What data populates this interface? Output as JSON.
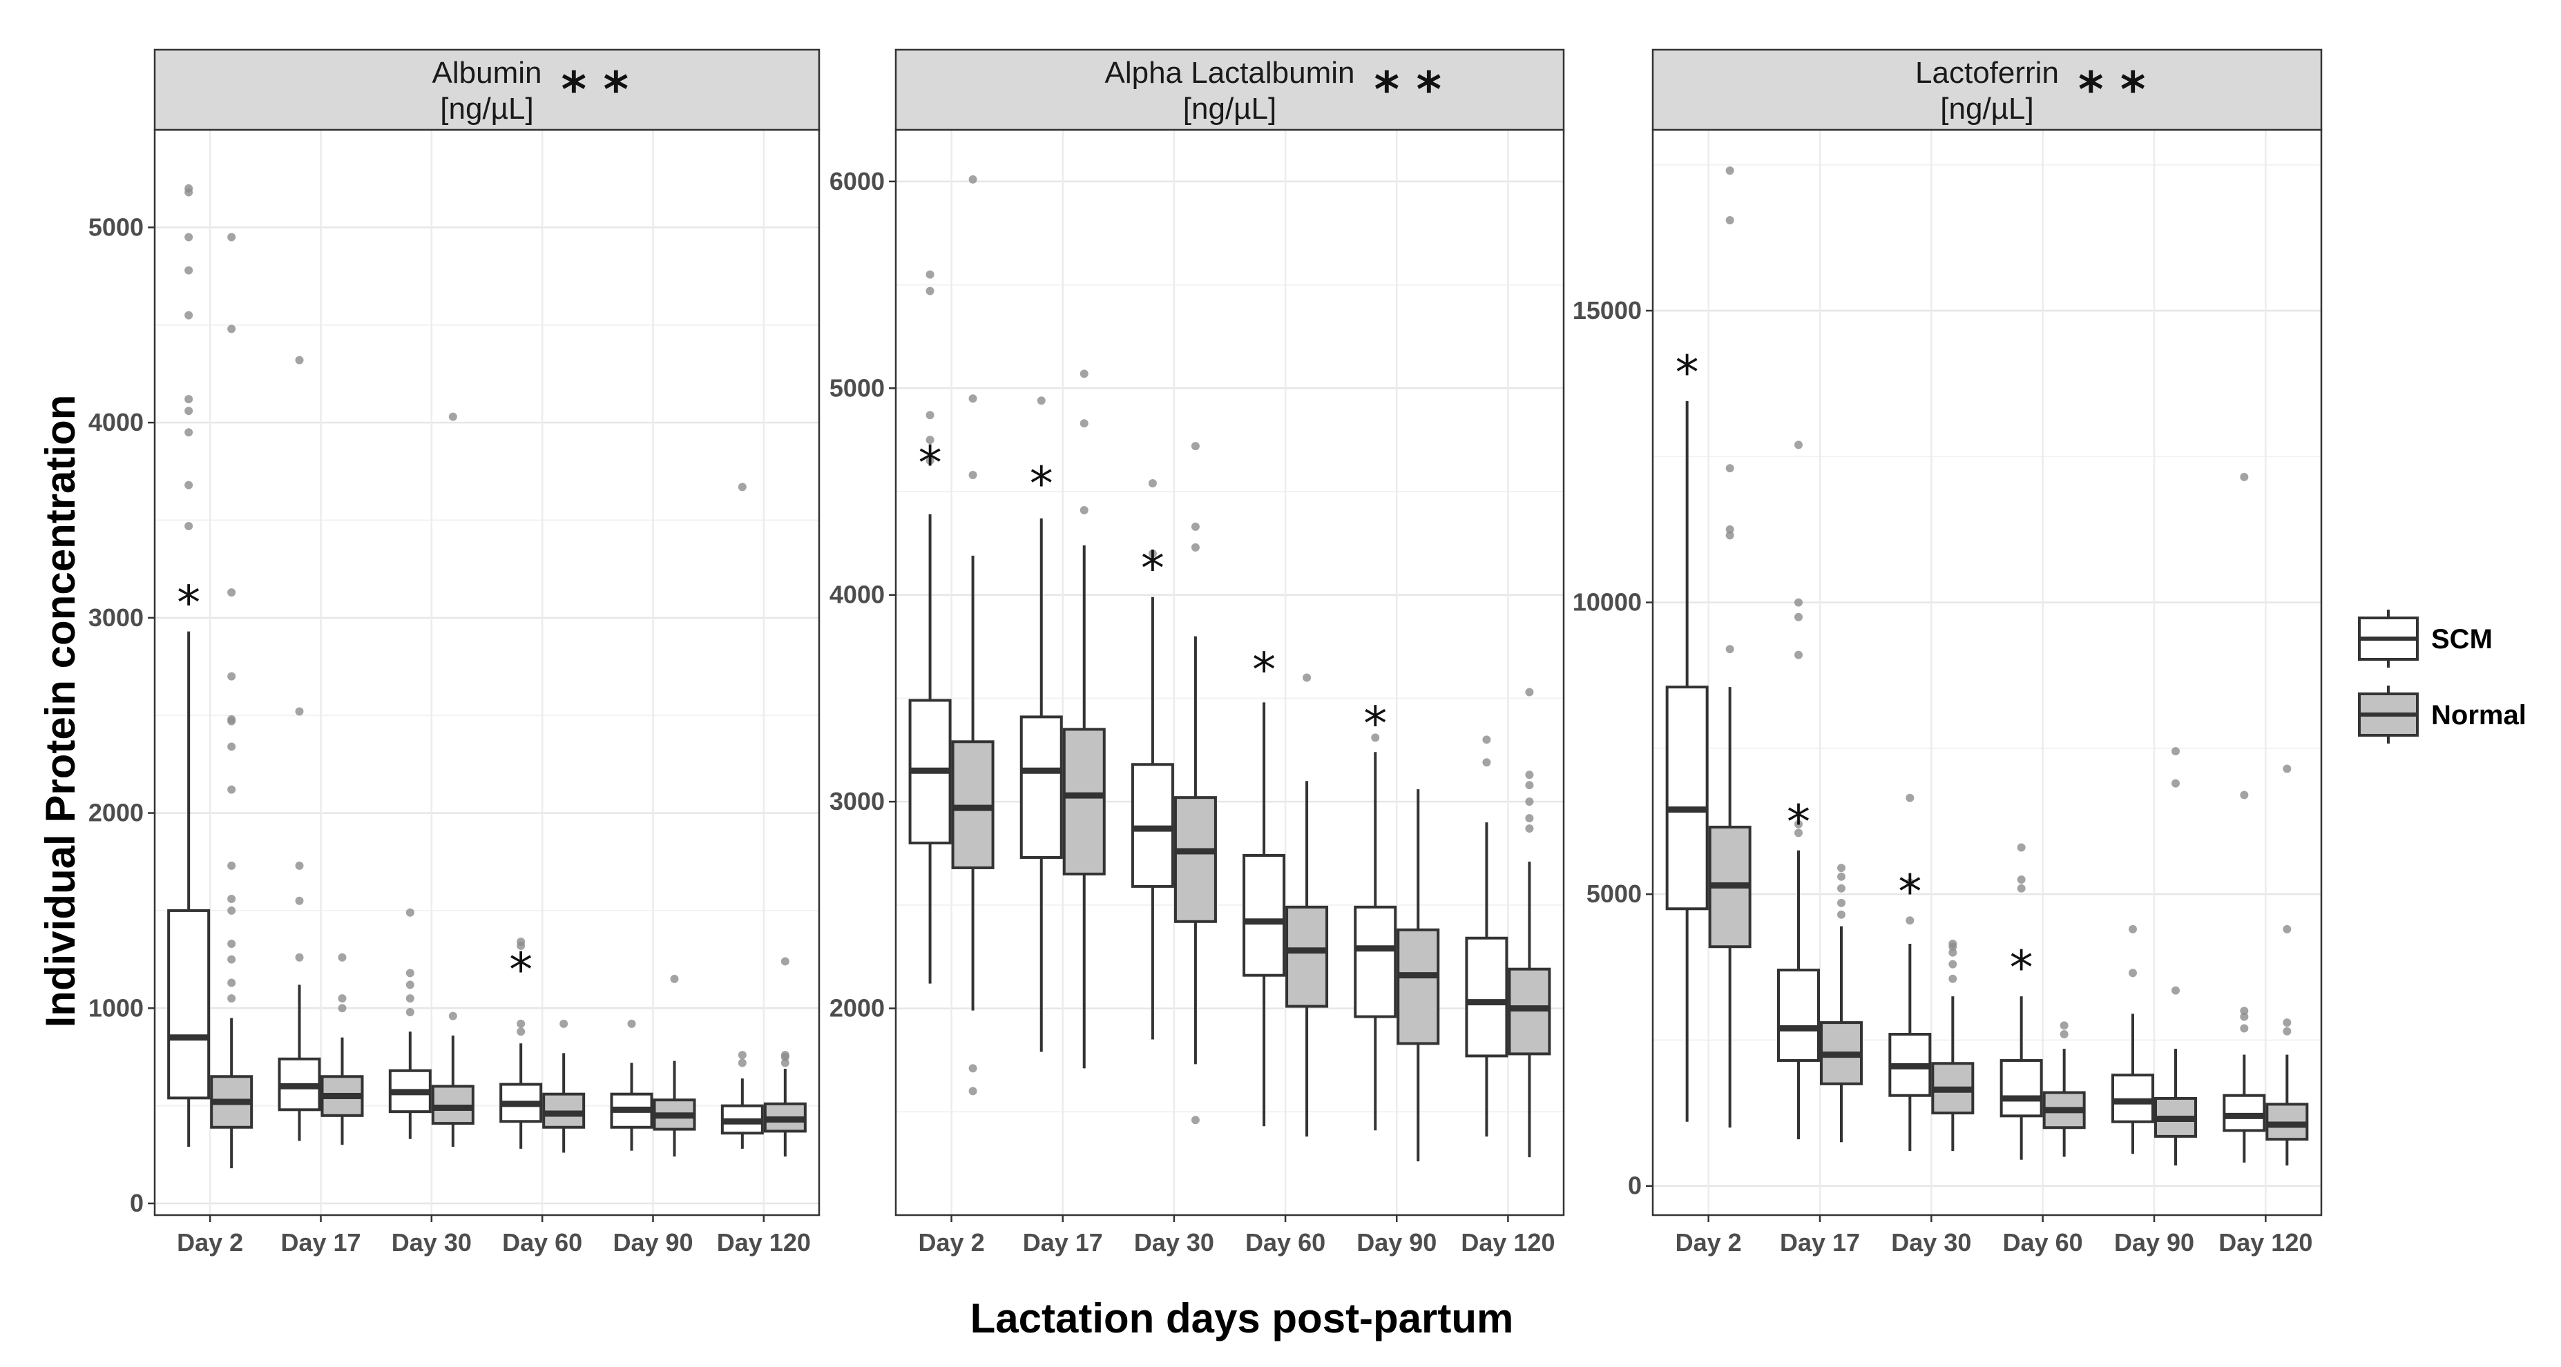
{
  "chart_data": {
    "type": "boxplot",
    "xlabel": "Lactation days post-partum",
    "ylabel": "Individual Protein concentration",
    "categories": [
      "Day 2",
      "Day 17",
      "Day 30",
      "Day 60",
      "Day 90",
      "Day 120"
    ],
    "legend": [
      {
        "name": "SCM",
        "color": "#ffffff"
      },
      {
        "name": "Normal",
        "color": "#c2c2c2"
      }
    ],
    "legend_position": "right",
    "grid": true,
    "panels": [
      {
        "title": "Albumin",
        "unit": "[ng/µL]",
        "significance": "**",
        "ylim": [
          -60,
          5500
        ],
        "yticks": [
          0,
          1000,
          2000,
          3000,
          4000,
          5000
        ],
        "series": {
          "SCM": [
            {
              "min": 290,
              "q1": 540,
              "median": 850,
              "q3": 1500,
              "max": 2930,
              "outliers": [
                3470,
                3680,
                3950,
                4060,
                4120,
                4550,
                4780,
                4950,
                5180,
                5200
              ]
            },
            {
              "min": 320,
              "q1": 480,
              "median": 600,
              "q3": 740,
              "max": 1120,
              "outliers": [
                1260,
                1550,
                1730,
                2520,
                4320
              ]
            },
            {
              "min": 330,
              "q1": 470,
              "median": 570,
              "q3": 680,
              "max": 880,
              "outliers": [
                980,
                1050,
                1120,
                1180,
                1490
              ]
            },
            {
              "min": 280,
              "q1": 420,
              "median": 510,
              "q3": 610,
              "max": 820,
              "outliers": [
                880,
                920,
                1320,
                1340
              ]
            },
            {
              "min": 270,
              "q1": 390,
              "median": 480,
              "q3": 560,
              "max": 720,
              "outliers": [
                920
              ]
            },
            {
              "min": 280,
              "q1": 360,
              "median": 420,
              "q3": 500,
              "max": 640,
              "outliers": [
                720,
                760,
                3670
              ]
            }
          ],
          "Normal": [
            {
              "min": 180,
              "q1": 390,
              "median": 520,
              "q3": 650,
              "max": 950,
              "outliers": [
                1050,
                1130,
                1250,
                1330,
                1500,
                1560,
                1730,
                2120,
                2340,
                2470,
                2480,
                2700,
                3130,
                4480,
                4950
              ]
            },
            {
              "min": 300,
              "q1": 450,
              "median": 550,
              "q3": 650,
              "max": 850,
              "outliers": [
                1000,
                1050,
                1260
              ]
            },
            {
              "min": 290,
              "q1": 410,
              "median": 490,
              "q3": 600,
              "max": 860,
              "outliers": [
                960,
                4030
              ]
            },
            {
              "min": 260,
              "q1": 390,
              "median": 460,
              "q3": 560,
              "max": 770,
              "outliers": [
                920
              ]
            },
            {
              "min": 240,
              "q1": 380,
              "median": 450,
              "q3": 530,
              "max": 730,
              "outliers": [
                1150
              ]
            },
            {
              "min": 240,
              "q1": 370,
              "median": 430,
              "q3": 510,
              "max": 690,
              "outliers": [
                720,
                750,
                760,
                1240
              ]
            }
          ]
        },
        "annotations": [
          {
            "category": "Day 2",
            "y": 2930,
            "text": "*"
          },
          {
            "category": "Day 60",
            "y": 1050,
            "text": "*"
          }
        ]
      },
      {
        "title": "Alpha Lactalbumin",
        "unit": "[ng/µL]",
        "significance": "**",
        "ylim": [
          1000,
          6250
        ],
        "yticks": [
          2000,
          3000,
          4000,
          5000,
          6000
        ],
        "series": {
          "SCM": [
            {
              "min": 2120,
              "q1": 2800,
              "median": 3150,
              "q3": 3490,
              "max": 4390,
              "outliers": [
                4650,
                4750,
                4870,
                5470,
                5550
              ]
            },
            {
              "min": 1790,
              "q1": 2730,
              "median": 3150,
              "q3": 3410,
              "max": 4370,
              "outliers": [
                4940
              ]
            },
            {
              "min": 1850,
              "q1": 2590,
              "median": 2870,
              "q3": 3180,
              "max": 3990,
              "outliers": [
                4200,
                4540
              ]
            },
            {
              "min": 1430,
              "q1": 2160,
              "median": 2420,
              "q3": 2740,
              "max": 3480,
              "outliers": []
            },
            {
              "min": 1410,
              "q1": 1960,
              "median": 2290,
              "q3": 2490,
              "max": 3240,
              "outliers": [
                3310
              ]
            },
            {
              "min": 1380,
              "q1": 1770,
              "median": 2030,
              "q3": 2340,
              "max": 2900,
              "outliers": [
                3190,
                3300
              ]
            }
          ],
          "Normal": [
            {
              "min": 1990,
              "q1": 2680,
              "median": 2970,
              "q3": 3290,
              "max": 4190,
              "outliers": [
                1600,
                1710,
                4580,
                4950,
                6010
              ]
            },
            {
              "min": 1710,
              "q1": 2650,
              "median": 3030,
              "q3": 3350,
              "max": 4240,
              "outliers": [
                4410,
                4830,
                5070
              ]
            },
            {
              "min": 1730,
              "q1": 2420,
              "median": 2760,
              "q3": 3020,
              "max": 3800,
              "outliers": [
                1460,
                4230,
                4330,
                4720
              ]
            },
            {
              "min": 1380,
              "q1": 2010,
              "median": 2280,
              "q3": 2490,
              "max": 3100,
              "outliers": [
                3600
              ]
            },
            {
              "min": 1260,
              "q1": 1830,
              "median": 2160,
              "q3": 2380,
              "max": 3060,
              "outliers": []
            },
            {
              "min": 1280,
              "q1": 1780,
              "median": 2000,
              "q3": 2190,
              "max": 2710,
              "outliers": [
                2870,
                2920,
                3000,
                3080,
                3130,
                3530
              ]
            }
          ]
        },
        "annotations": [
          {
            "category": "Day 2",
            "y": 4500,
            "text": "*"
          },
          {
            "category": "Day 17",
            "y": 4400,
            "text": "*"
          },
          {
            "category": "Day 30",
            "y": 3990,
            "text": "*"
          },
          {
            "category": "Day 60",
            "y": 3500,
            "text": "*"
          },
          {
            "category": "Day 90",
            "y": 3240,
            "text": "*"
          }
        ]
      },
      {
        "title": "Lactoferrin",
        "unit": "[ng/µL]",
        "significance": "**",
        "ylim": [
          -500,
          18100
        ],
        "yticks": [
          0,
          5000,
          10000,
          15000
        ],
        "series": {
          "SCM": [
            {
              "min": 1100,
              "q1": 4750,
              "median": 6450,
              "q3": 8550,
              "max": 13450,
              "outliers": []
            },
            {
              "min": 800,
              "q1": 2150,
              "median": 2700,
              "q3": 3700,
              "max": 5750,
              "outliers": [
                6050,
                6200,
                9100,
                9750,
                10000,
                12700
              ]
            },
            {
              "min": 600,
              "q1": 1550,
              "median": 2050,
              "q3": 2600,
              "max": 4150,
              "outliers": [
                4550,
                5200,
                6650
              ]
            },
            {
              "min": 450,
              "q1": 1200,
              "median": 1500,
              "q3": 2150,
              "max": 3250,
              "outliers": [
                5100,
                5250,
                5800
              ]
            },
            {
              "min": 550,
              "q1": 1100,
              "median": 1450,
              "q3": 1900,
              "max": 2950,
              "outliers": [
                3650,
                4400
              ]
            },
            {
              "min": 400,
              "q1": 950,
              "median": 1200,
              "q3": 1550,
              "max": 2250,
              "outliers": [
                2700,
                2900,
                3000,
                6700,
                12150
              ]
            }
          ],
          "Normal": [
            {
              "min": 1000,
              "q1": 4100,
              "median": 5150,
              "q3": 6150,
              "max": 8550,
              "outliers": [
                9200,
                11150,
                11250,
                12300,
                16550,
                17400
              ]
            },
            {
              "min": 750,
              "q1": 1750,
              "median": 2250,
              "q3": 2800,
              "max": 4450,
              "outliers": [
                4650,
                4850,
                5100,
                5300,
                5450
              ]
            },
            {
              "min": 600,
              "q1": 1250,
              "median": 1650,
              "q3": 2100,
              "max": 3250,
              "outliers": [
                3550,
                3800,
                4000,
                4100,
                4150
              ]
            },
            {
              "min": 500,
              "q1": 1000,
              "median": 1300,
              "q3": 1600,
              "max": 2350,
              "outliers": [
                2600,
                2750
              ]
            },
            {
              "min": 350,
              "q1": 850,
              "median": 1150,
              "q3": 1500,
              "max": 2350,
              "outliers": [
                3350,
                6900,
                7450
              ]
            },
            {
              "min": 350,
              "q1": 800,
              "median": 1050,
              "q3": 1400,
              "max": 2250,
              "outliers": [
                2650,
                2800,
                4400,
                7150
              ]
            }
          ]
        },
        "annotations": [
          {
            "category": "Day 2",
            "y": 13450,
            "text": "*"
          },
          {
            "category": "Day 17",
            "y": 5750,
            "text": "*"
          },
          {
            "category": "Day 30",
            "y": 4550,
            "text": "*"
          },
          {
            "category": "Day 60",
            "y": 3250,
            "text": "*"
          }
        ]
      }
    ]
  }
}
